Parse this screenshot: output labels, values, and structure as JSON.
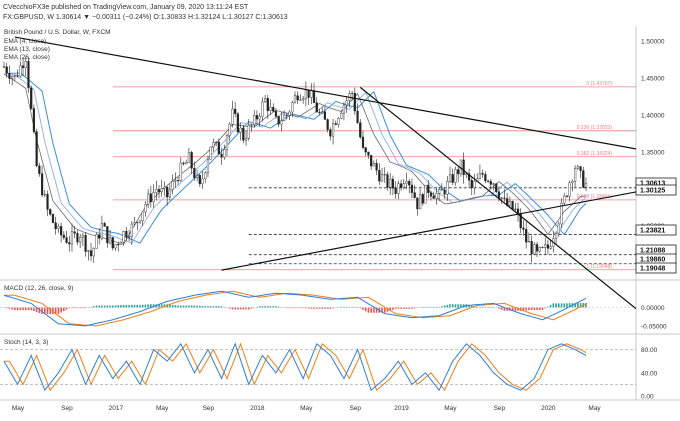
{
  "header": {
    "publisher": "CVecchioFX3e published on TradingView.com, January 09, 2020 13:11:24 EST",
    "pair_line": "FX:GBPUSD, W 1.30614 ▼ −0.00311 (−0.24%) O:1.30833 H:1.32124 L:1.30127 C:1.30613"
  },
  "legend": {
    "title": "British Pound / U.S. Dollar, W, FXCM",
    "ema": [
      "EMA (4, close)",
      "EMA (13, close)",
      "EMA (26, close)"
    ]
  },
  "colors": {
    "price_up": "#ffffff",
    "price_down": "#222222",
    "ema4": "#6a6a6a",
    "ema13": "#9bb5e8",
    "ema26": "#3b8fd9",
    "fib": "#f08080",
    "trend": "#111111",
    "dashed": "#333333",
    "macd_line": "#2e7fd6",
    "signal_line": "#ef7f1a",
    "hist_pos": "#26a69a",
    "hist_neg": "#ef5350",
    "stoch_k": "#2e7fd6",
    "stoch_d": "#ef7f1a"
  },
  "fib_labels": [
    "0 (1.43767)",
    "0.236 (1.37833)",
    "0.382 (1.34324)",
    "0.618 (1.28491)",
    "1 (1.19048)"
  ],
  "price_axis": [
    "1.50000",
    "1.45000",
    "1.40000",
    "1.35000",
    "1.30000",
    "1.25000",
    "1.20000"
  ],
  "price_badges": [
    {
      "text": "1.30613",
      "value": 1.30613
    },
    {
      "text": "1.30125",
      "value": 1.30125
    },
    {
      "text": "1.23821",
      "value": 1.23821
    },
    {
      "text": "1.21088",
      "value": 1.21088
    },
    {
      "text": "1.19860",
      "value": 1.1986
    },
    {
      "text": "1.19048",
      "value": 1.19048
    }
  ],
  "macd": {
    "label": "MACD (12, 26, close, 9)",
    "axis": [
      "0.00000",
      "-0.05000"
    ]
  },
  "stoch": {
    "label": "Stoch (14, 3, 3)",
    "axis": [
      "80.00",
      "40.00",
      "0.00"
    ]
  },
  "time_axis": [
    "May",
    "Sep",
    "2017",
    "May",
    "Sep",
    "2018",
    "May",
    "Sep",
    "2019",
    "May",
    "Sep",
    "2020",
    "May"
  ],
  "chart_data": {
    "type": "candlestick",
    "ylim": [
      1.178,
      1.52
    ],
    "x_range": [
      0,
      214
    ],
    "candles_weekly_approx": "generated",
    "fib_levels": [
      1.43767,
      1.37833,
      1.34324,
      1.28491,
      1.19048
    ],
    "dashed_levels": [
      1.30125,
      1.23821,
      1.21088,
      1.1986
    ],
    "trendlines": [
      {
        "x1": 4,
        "y1": 1.505,
        "x2": 214,
        "y2": 1.367
      },
      {
        "x1": 80,
        "y1": 1.19,
        "x2": 214,
        "y2": 1.282
      },
      {
        "x1": 131,
        "y1": 1.437,
        "x2": 214,
        "y2": 1.196
      }
    ],
    "ema_keys": [
      [
        0,
        1.455
      ],
      [
        8,
        1.43
      ],
      [
        12,
        1.36
      ],
      [
        18,
        1.28
      ],
      [
        26,
        1.25
      ],
      [
        36,
        1.24
      ],
      [
        44,
        1.225
      ],
      [
        52,
        1.27
      ],
      [
        60,
        1.3
      ],
      [
        68,
        1.33
      ],
      [
        76,
        1.36
      ],
      [
        84,
        1.39
      ],
      [
        92,
        1.38
      ],
      [
        100,
        1.4
      ],
      [
        108,
        1.395
      ],
      [
        116,
        1.42
      ],
      [
        124,
        1.41
      ],
      [
        130,
        1.43
      ],
      [
        136,
        1.37
      ],
      [
        142,
        1.33
      ],
      [
        150,
        1.32
      ],
      [
        156,
        1.3
      ],
      [
        162,
        1.285
      ],
      [
        170,
        1.29
      ],
      [
        176,
        1.29
      ],
      [
        182,
        1.305
      ],
      [
        188,
        1.285
      ],
      [
        194,
        1.265
      ],
      [
        200,
        1.24
      ],
      [
        206,
        1.275
      ],
      [
        212,
        1.295
      ]
    ],
    "price_keys": [
      [
        0,
        1.465
      ],
      [
        4,
        1.45
      ],
      [
        8,
        1.48
      ],
      [
        12,
        1.33
      ],
      [
        16,
        1.27
      ],
      [
        20,
        1.24
      ],
      [
        24,
        1.23
      ],
      [
        28,
        1.24
      ],
      [
        32,
        1.21
      ],
      [
        36,
        1.25
      ],
      [
        40,
        1.22
      ],
      [
        44,
        1.24
      ],
      [
        48,
        1.25
      ],
      [
        52,
        1.28
      ],
      [
        56,
        1.3
      ],
      [
        60,
        1.29
      ],
      [
        64,
        1.32
      ],
      [
        68,
        1.34
      ],
      [
        72,
        1.3
      ],
      [
        76,
        1.36
      ],
      [
        80,
        1.35
      ],
      [
        84,
        1.4
      ],
      [
        88,
        1.37
      ],
      [
        92,
        1.39
      ],
      [
        96,
        1.42
      ],
      [
        100,
        1.39
      ],
      [
        104,
        1.4
      ],
      [
        108,
        1.43
      ],
      [
        112,
        1.43
      ],
      [
        116,
        1.4
      ],
      [
        120,
        1.38
      ],
      [
        124,
        1.41
      ],
      [
        128,
        1.43
      ],
      [
        132,
        1.35
      ],
      [
        136,
        1.33
      ],
      [
        140,
        1.31
      ],
      [
        144,
        1.3
      ],
      [
        148,
        1.32
      ],
      [
        152,
        1.28
      ],
      [
        156,
        1.3
      ],
      [
        160,
        1.29
      ],
      [
        164,
        1.31
      ],
      [
        168,
        1.33
      ],
      [
        172,
        1.3
      ],
      [
        176,
        1.32
      ],
      [
        180,
        1.31
      ],
      [
        184,
        1.28
      ],
      [
        188,
        1.27
      ],
      [
        192,
        1.23
      ],
      [
        196,
        1.21
      ],
      [
        200,
        1.22
      ],
      [
        204,
        1.26
      ],
      [
        208,
        1.31
      ],
      [
        210,
        1.33
      ],
      [
        212,
        1.315
      ],
      [
        214,
        1.306
      ]
    ],
    "macd_keys": [
      [
        0,
        0.6
      ],
      [
        10,
        0.2
      ],
      [
        20,
        -0.8
      ],
      [
        30,
        -0.9
      ],
      [
        40,
        -0.6
      ],
      [
        50,
        -0.2
      ],
      [
        60,
        0.3
      ],
      [
        70,
        0.6
      ],
      [
        80,
        0.8
      ],
      [
        90,
        0.5
      ],
      [
        100,
        0.7
      ],
      [
        110,
        0.6
      ],
      [
        120,
        0.4
      ],
      [
        130,
        0.5
      ],
      [
        140,
        -0.3
      ],
      [
        150,
        -0.5
      ],
      [
        160,
        -0.4
      ],
      [
        170,
        0.1
      ],
      [
        180,
        0.2
      ],
      [
        190,
        -0.3
      ],
      [
        198,
        -0.6
      ],
      [
        206,
        -0.1
      ],
      [
        214,
        0.45
      ]
    ],
    "stoch_keys": [
      [
        0,
        60
      ],
      [
        5,
        20
      ],
      [
        10,
        70
      ],
      [
        15,
        10
      ],
      [
        20,
        40
      ],
      [
        25,
        80
      ],
      [
        30,
        20
      ],
      [
        35,
        70
      ],
      [
        40,
        30
      ],
      [
        45,
        60
      ],
      [
        50,
        20
      ],
      [
        55,
        80
      ],
      [
        60,
        60
      ],
      [
        65,
        90
      ],
      [
        70,
        40
      ],
      [
        75,
        80
      ],
      [
        80,
        30
      ],
      [
        85,
        90
      ],
      [
        90,
        20
      ],
      [
        95,
        70
      ],
      [
        100,
        40
      ],
      [
        105,
        80
      ],
      [
        110,
        30
      ],
      [
        115,
        90
      ],
      [
        120,
        70
      ],
      [
        125,
        30
      ],
      [
        130,
        80
      ],
      [
        135,
        10
      ],
      [
        140,
        30
      ],
      [
        145,
        60
      ],
      [
        150,
        20
      ],
      [
        155,
        40
      ],
      [
        160,
        10
      ],
      [
        165,
        60
      ],
      [
        170,
        90
      ],
      [
        175,
        70
      ],
      [
        180,
        40
      ],
      [
        185,
        20
      ],
      [
        190,
        10
      ],
      [
        195,
        30
      ],
      [
        200,
        80
      ],
      [
        205,
        90
      ],
      [
        210,
        80
      ],
      [
        214,
        70
      ]
    ]
  }
}
